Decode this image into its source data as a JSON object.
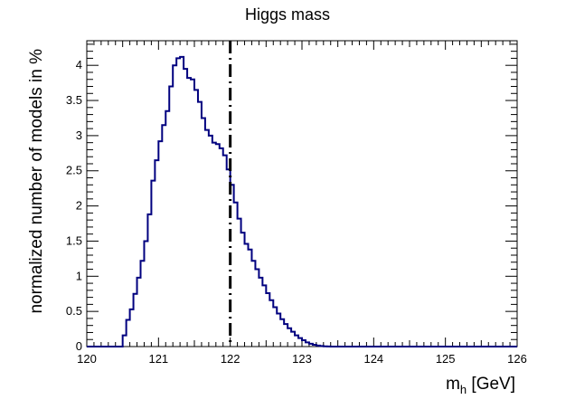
{
  "chart_data": {
    "type": "histogram",
    "title": "Higgs mass",
    "xlabel": {
      "main": "m",
      "sub": "h",
      "unit": " [GeV]"
    },
    "ylabel": "normalized number of models in %",
    "xlim": [
      120,
      126
    ],
    "ylim": [
      0,
      4.35
    ],
    "grid": false,
    "x_ticks": [
      120,
      121,
      122,
      123,
      124,
      125,
      126
    ],
    "x_tick_labels": [
      "120",
      "121",
      "122",
      "123",
      "124",
      "125",
      "126"
    ],
    "y_ticks": [
      0,
      0.5,
      1,
      1.5,
      2,
      2.5,
      3,
      3.5,
      4
    ],
    "y_tick_labels": [
      "0",
      "0.5",
      "1",
      "1.5",
      "2",
      "2.5",
      "3",
      "3.5",
      "4"
    ],
    "bin_width": 0.05,
    "bin_start": 120.5,
    "values": [
      0.16,
      0.38,
      0.53,
      0.75,
      0.98,
      1.22,
      1.5,
      1.88,
      2.36,
      2.65,
      2.92,
      3.15,
      3.35,
      3.7,
      4.0,
      4.1,
      4.12,
      3.95,
      3.82,
      3.8,
      3.65,
      3.48,
      3.25,
      3.08,
      3.0,
      2.9,
      2.88,
      2.82,
      2.72,
      2.52,
      2.3,
      2.05,
      1.82,
      1.62,
      1.46,
      1.38,
      1.22,
      1.1,
      0.98,
      0.87,
      0.76,
      0.66,
      0.56,
      0.47,
      0.39,
      0.32,
      0.26,
      0.21,
      0.16,
      0.12,
      0.09,
      0.06,
      0.04,
      0.025,
      0.015,
      0.008,
      0.004,
      0.002
    ],
    "series_color": "#00007f",
    "vline": {
      "x": 122.0,
      "style": "dash-dot",
      "color": "#000000"
    }
  }
}
